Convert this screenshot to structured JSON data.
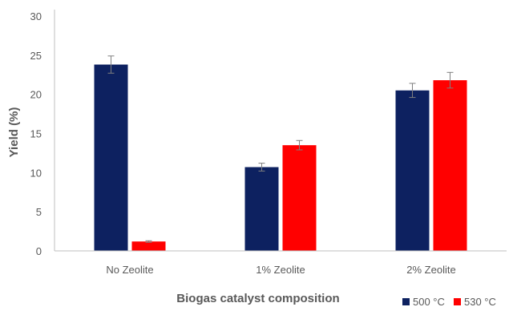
{
  "chart_data": {
    "type": "bar",
    "categories": [
      "No Zeolite",
      "1% Zeolite",
      "2% Zeolite"
    ],
    "series": [
      {
        "name": "500 °C",
        "color": "#0d2160",
        "values": [
          23.8,
          10.7,
          20.5
        ],
        "errors": [
          1.1,
          0.5,
          0.9
        ]
      },
      {
        "name": "530 °C",
        "color": "#ff0000",
        "values": [
          1.2,
          13.5,
          21.8
        ],
        "errors": [
          0.1,
          0.6,
          1.0
        ]
      }
    ],
    "xlabel": "Biogas catalyst composition",
    "ylabel": "Yield (%)",
    "ylim": [
      0,
      30
    ],
    "yticks": [
      0,
      5,
      10,
      15,
      20,
      25,
      30
    ],
    "grid": false,
    "legend_position": "bottom-right"
  }
}
